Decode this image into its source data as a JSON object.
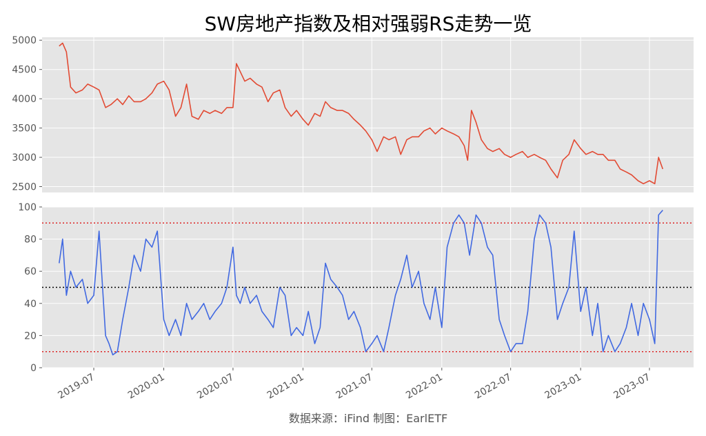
{
  "chart_data": [
    {
      "type": "line",
      "title": "SW房地产指数及相对强弱RS走势一览",
      "ylim": [
        2400,
        5050
      ],
      "yticks": [
        "2500",
        "3000",
        "3500",
        "4000",
        "4500",
        "5000"
      ],
      "series": [
        {
          "color": "#e24a33",
          "x": [
            "2019-04-01",
            "2019-04-10",
            "2019-04-20",
            "2019-05-01",
            "2019-05-15",
            "2019-06-01",
            "2019-06-15",
            "2019-07-01",
            "2019-07-15",
            "2019-08-01",
            "2019-08-15",
            "2019-09-01",
            "2019-09-15",
            "2019-10-01",
            "2019-10-15",
            "2019-11-01",
            "2019-11-15",
            "2019-12-01",
            "2019-12-15",
            "2020-01-01",
            "2020-01-15",
            "2020-02-01",
            "2020-02-15",
            "2020-03-01",
            "2020-03-15",
            "2020-04-01",
            "2020-04-15",
            "2020-05-01",
            "2020-05-15",
            "2020-06-01",
            "2020-06-15",
            "2020-07-01",
            "2020-07-10",
            "2020-08-01",
            "2020-08-15",
            "2020-09-01",
            "2020-09-15",
            "2020-10-01",
            "2020-10-15",
            "2020-11-01",
            "2020-11-15",
            "2020-12-01",
            "2020-12-15",
            "2021-01-01",
            "2021-01-15",
            "2021-02-01",
            "2021-02-15",
            "2021-03-01",
            "2021-03-15",
            "2021-04-01",
            "2021-04-15",
            "2021-05-01",
            "2021-05-15",
            "2021-06-01",
            "2021-06-15",
            "2021-07-01",
            "2021-07-15",
            "2021-08-01",
            "2021-08-15",
            "2021-09-01",
            "2021-09-15",
            "2021-10-01",
            "2021-10-15",
            "2021-11-01",
            "2021-11-15",
            "2021-12-01",
            "2021-12-15",
            "2022-01-01",
            "2022-01-15",
            "2022-02-01",
            "2022-02-15",
            "2022-03-01",
            "2022-03-10",
            "2022-03-20",
            "2022-04-01",
            "2022-04-15",
            "2022-05-01",
            "2022-05-15",
            "2022-06-01",
            "2022-06-15",
            "2022-07-01",
            "2022-07-15",
            "2022-08-01",
            "2022-08-15",
            "2022-09-01",
            "2022-09-15",
            "2022-10-01",
            "2022-10-15",
            "2022-11-01",
            "2022-11-15",
            "2022-12-01",
            "2022-12-15",
            "2023-01-01",
            "2023-01-15",
            "2023-02-01",
            "2023-02-15",
            "2023-03-01",
            "2023-03-15",
            "2023-04-01",
            "2023-04-15",
            "2023-05-01",
            "2023-05-15",
            "2023-06-01",
            "2023-06-15",
            "2023-07-01",
            "2023-07-15",
            "2023-07-25",
            "2023-08-05"
          ],
          "values": [
            4900,
            4950,
            4800,
            4200,
            4100,
            4150,
            4250,
            4200,
            4150,
            3850,
            3900,
            4000,
            3900,
            4050,
            3950,
            3950,
            4000,
            4100,
            4250,
            4300,
            4150,
            3700,
            3850,
            4250,
            3700,
            3650,
            3800,
            3750,
            3800,
            3750,
            3850,
            3850,
            4600,
            4300,
            4350,
            4250,
            4200,
            3950,
            4100,
            4150,
            3850,
            3700,
            3800,
            3650,
            3550,
            3750,
            3700,
            3950,
            3850,
            3800,
            3800,
            3750,
            3650,
            3550,
            3450,
            3300,
            3100,
            3350,
            3300,
            3350,
            3050,
            3300,
            3350,
            3350,
            3450,
            3500,
            3400,
            3500,
            3450,
            3400,
            3350,
            3200,
            2950,
            3800,
            3600,
            3300,
            3150,
            3100,
            3150,
            3050,
            3000,
            3050,
            3100,
            3000,
            3050,
            3000,
            2950,
            2800,
            2650,
            2950,
            3050,
            3300,
            3150,
            3050,
            3100,
            3050,
            3050,
            2950,
            2950,
            2800,
            2750,
            2700,
            2600,
            2550,
            2600,
            2550,
            3000,
            2800
          ]
        }
      ]
    },
    {
      "type": "line",
      "ylim": [
        0,
        100
      ],
      "yticks": [
        "0",
        "20",
        "40",
        "60",
        "80",
        "100"
      ],
      "xticks": [
        "2019-07",
        "2020-01",
        "2020-07",
        "2021-01",
        "2021-07",
        "2022-01",
        "2022-07",
        "2023-01",
        "2023-07"
      ],
      "hlines": [
        {
          "y": 90,
          "color": "#dd2222"
        },
        {
          "y": 50,
          "color": "#000000"
        },
        {
          "y": 10,
          "color": "#dd2222"
        }
      ],
      "series": [
        {
          "color": "#4169e1",
          "x": [
            "2019-04-01",
            "2019-04-10",
            "2019-04-20",
            "2019-05-01",
            "2019-05-15",
            "2019-06-01",
            "2019-06-15",
            "2019-07-01",
            "2019-07-15",
            "2019-08-01",
            "2019-08-10",
            "2019-08-20",
            "2019-09-01",
            "2019-09-15",
            "2019-10-01",
            "2019-10-15",
            "2019-11-01",
            "2019-11-15",
            "2019-12-01",
            "2019-12-15",
            "2020-01-01",
            "2020-01-15",
            "2020-02-01",
            "2020-02-15",
            "2020-03-01",
            "2020-03-15",
            "2020-04-01",
            "2020-04-15",
            "2020-05-01",
            "2020-05-15",
            "2020-06-01",
            "2020-06-15",
            "2020-07-01",
            "2020-07-10",
            "2020-07-20",
            "2020-08-01",
            "2020-08-15",
            "2020-09-01",
            "2020-09-15",
            "2020-10-01",
            "2020-10-15",
            "2020-11-01",
            "2020-11-15",
            "2020-12-01",
            "2020-12-15",
            "2021-01-01",
            "2021-01-15",
            "2021-02-01",
            "2021-02-15",
            "2021-03-01",
            "2021-03-15",
            "2021-04-01",
            "2021-04-15",
            "2021-05-01",
            "2021-05-15",
            "2021-06-01",
            "2021-06-15",
            "2021-07-01",
            "2021-07-15",
            "2021-08-01",
            "2021-08-15",
            "2021-09-01",
            "2021-09-15",
            "2021-10-01",
            "2021-10-15",
            "2021-11-01",
            "2021-11-15",
            "2021-12-01",
            "2021-12-15",
            "2022-01-01",
            "2022-01-15",
            "2022-02-01",
            "2022-02-15",
            "2022-03-01",
            "2022-03-15",
            "2022-04-01",
            "2022-04-15",
            "2022-05-01",
            "2022-05-15",
            "2022-06-01",
            "2022-06-15",
            "2022-07-01",
            "2022-07-15",
            "2022-08-01",
            "2022-08-15",
            "2022-09-01",
            "2022-09-15",
            "2022-10-01",
            "2022-10-15",
            "2022-11-01",
            "2022-11-15",
            "2022-12-01",
            "2022-12-15",
            "2023-01-01",
            "2023-01-15",
            "2023-02-01",
            "2023-02-15",
            "2023-03-01",
            "2023-03-15",
            "2023-04-01",
            "2023-04-15",
            "2023-05-01",
            "2023-05-15",
            "2023-06-01",
            "2023-06-15",
            "2023-07-01",
            "2023-07-15",
            "2023-07-25",
            "2023-08-05"
          ],
          "values": [
            65,
            80,
            45,
            60,
            50,
            55,
            40,
            45,
            85,
            20,
            15,
            8,
            10,
            30,
            50,
            70,
            60,
            80,
            75,
            85,
            30,
            20,
            30,
            20,
            40,
            30,
            35,
            40,
            30,
            35,
            40,
            50,
            75,
            45,
            40,
            50,
            40,
            45,
            35,
            30,
            25,
            50,
            45,
            20,
            25,
            20,
            35,
            15,
            25,
            65,
            55,
            50,
            45,
            30,
            35,
            25,
            10,
            15,
            20,
            10,
            25,
            45,
            55,
            70,
            50,
            60,
            40,
            30,
            50,
            25,
            75,
            90,
            95,
            90,
            70,
            95,
            90,
            75,
            70,
            30,
            20,
            10,
            15,
            15,
            35,
            80,
            95,
            90,
            75,
            30,
            40,
            50,
            85,
            35,
            50,
            20,
            40,
            10,
            20,
            10,
            15,
            25,
            40,
            20,
            40,
            30,
            15,
            95,
            98
          ]
        }
      ]
    }
  ],
  "source_text": "数据来源：iFind 制图：EarlETF"
}
